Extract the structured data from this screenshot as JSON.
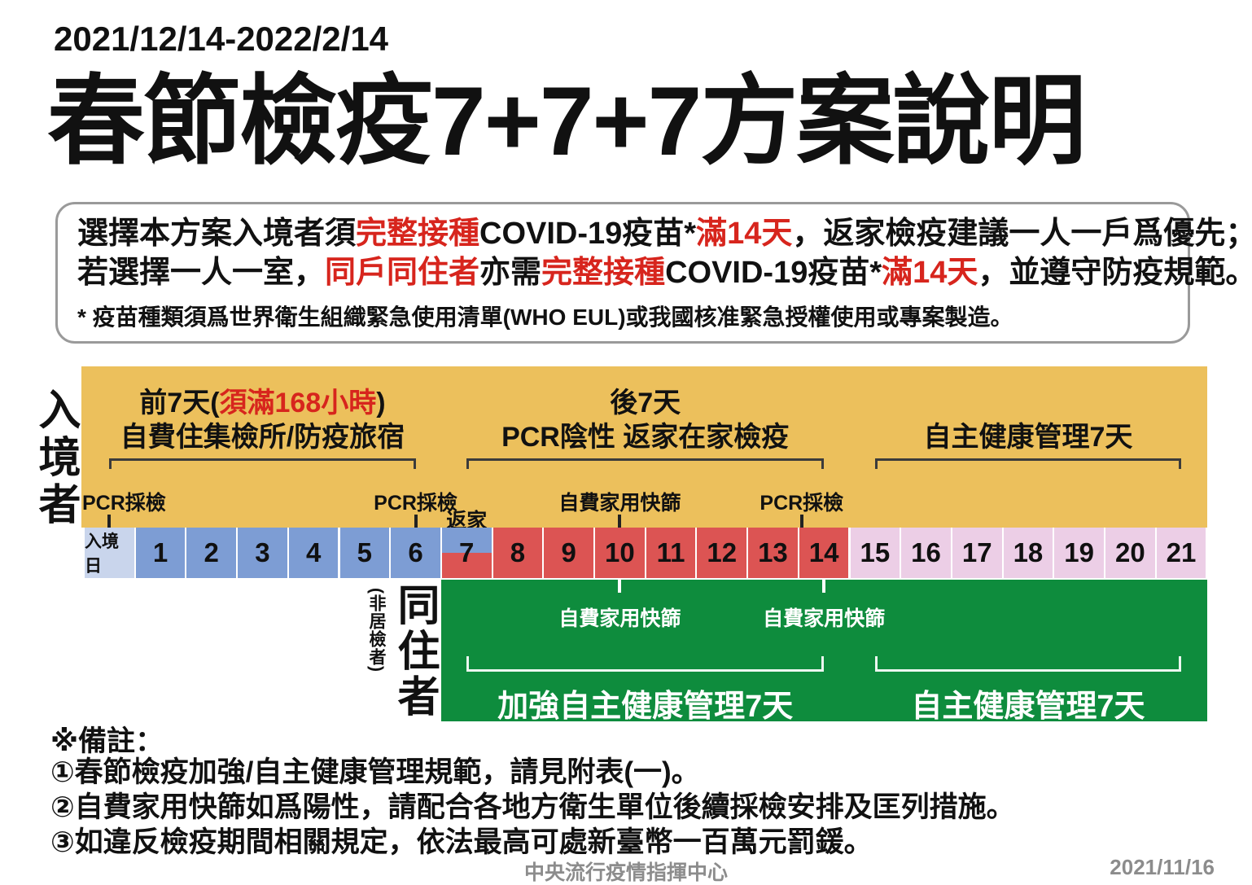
{
  "header": {
    "date_range": "2021/12/14-2022/2/14",
    "title": "春節檢疫7+7+7方案說明"
  },
  "colors": {
    "band_orange": "#ecc05c",
    "day_entry_blue": "#c9d5ec",
    "day_blue": "#7d9dd4",
    "day_red": "#dc5453",
    "day_pink": "#eccee6",
    "band_green": "#0e8c3d",
    "accent_red_text": "#d7251d",
    "footer_gray": "#8c8c8c"
  },
  "notice": {
    "line1": [
      {
        "t": "選擇本方案入境者須",
        "c": "k"
      },
      {
        "t": "完整接種",
        "c": "r"
      },
      {
        "t": "COVID-19疫苗*",
        "c": "k"
      },
      {
        "t": "滿14天",
        "c": "r"
      },
      {
        "t": "，返家檢疫建議一人一戶爲優先；",
        "c": "k"
      }
    ],
    "line2": [
      {
        "t": "若選擇一人一室，",
        "c": "k"
      },
      {
        "t": "同戶同住者",
        "c": "r"
      },
      {
        "t": "亦需",
        "c": "k"
      },
      {
        "t": "完整接種",
        "c": "r"
      },
      {
        "t": "COVID-19疫苗*",
        "c": "k"
      },
      {
        "t": "滿14天",
        "c": "r"
      },
      {
        "t": "，並遵守防疫規範。",
        "c": "k"
      }
    ],
    "footnote": "* 疫苗種類須爲世界衛生組織緊急使用清單(WHO EUL)或我國核准緊急授權使用或專案製造。"
  },
  "timeline": {
    "entrant_label": "入境者",
    "phases": [
      {
        "from": 0,
        "to": 6,
        "l1": [
          {
            "t": "前7天(",
            "c": "k"
          },
          {
            "t": "須滿168小時",
            "c": "r"
          },
          {
            "t": ")",
            "c": "k"
          }
        ],
        "l2": "自費住集檢所/防疫旅宿"
      },
      {
        "from": 7,
        "to": 14,
        "l1": [
          {
            "t": "後7天",
            "c": "k"
          }
        ],
        "l2": "PCR陰性 返家在家檢疫"
      },
      {
        "from": 15,
        "to": 21,
        "l1": [],
        "l2": "自主健康管理7天"
      }
    ],
    "events_top": [
      {
        "label": "PCR採檢",
        "day": 0,
        "align": "left"
      },
      {
        "label": "PCR採檢",
        "day": 6
      },
      {
        "label": "自費家用快篩",
        "day": 10
      },
      {
        "label": "PCR採檢",
        "day": 14,
        "anchor": "start"
      }
    ],
    "return_home": {
      "label": "返家",
      "day": 7
    },
    "days": [
      {
        "label": "入境日",
        "type": "entry"
      },
      {
        "label": "1",
        "type": "quarantine"
      },
      {
        "label": "2",
        "type": "quarantine"
      },
      {
        "label": "3",
        "type": "quarantine"
      },
      {
        "label": "4",
        "type": "quarantine"
      },
      {
        "label": "5",
        "type": "quarantine"
      },
      {
        "label": "6",
        "type": "quarantine"
      },
      {
        "label": "7",
        "type": "split"
      },
      {
        "label": "8",
        "type": "home"
      },
      {
        "label": "9",
        "type": "home"
      },
      {
        "label": "10",
        "type": "home"
      },
      {
        "label": "11",
        "type": "home"
      },
      {
        "label": "12",
        "type": "home"
      },
      {
        "label": "13",
        "type": "home"
      },
      {
        "label": "14",
        "type": "home"
      },
      {
        "label": "15",
        "type": "self"
      },
      {
        "label": "16",
        "type": "self"
      },
      {
        "label": "17",
        "type": "self"
      },
      {
        "label": "18",
        "type": "self"
      },
      {
        "label": "19",
        "type": "self"
      },
      {
        "label": "20",
        "type": "self"
      },
      {
        "label": "21",
        "type": "self"
      }
    ],
    "cohabitant": {
      "note": "(非居檢者)",
      "label": "同住者",
      "events": [
        {
          "label": "自費家用快篩",
          "day": 10
        },
        {
          "label": "自費家用快篩",
          "day": 14
        }
      ],
      "periods": [
        {
          "label": "加強自主健康管理7天",
          "from": 7,
          "to": 14
        },
        {
          "label": "自主健康管理7天",
          "from": 15,
          "to": 21
        }
      ]
    }
  },
  "notes": {
    "heading": "※備註：",
    "items": [
      "①春節檢疫加強/自主健康管理規範，請見附表(一)。",
      "②自費家用快篩如爲陽性，請配合各地方衛生單位後續採檢安排及匡列措施。",
      "③如違反檢疫期間相關規定，依法最高可處新臺幣一百萬元罰鍰。"
    ]
  },
  "footer": {
    "org": "中央流行疫情指揮中心",
    "date": "2021/11/16"
  }
}
